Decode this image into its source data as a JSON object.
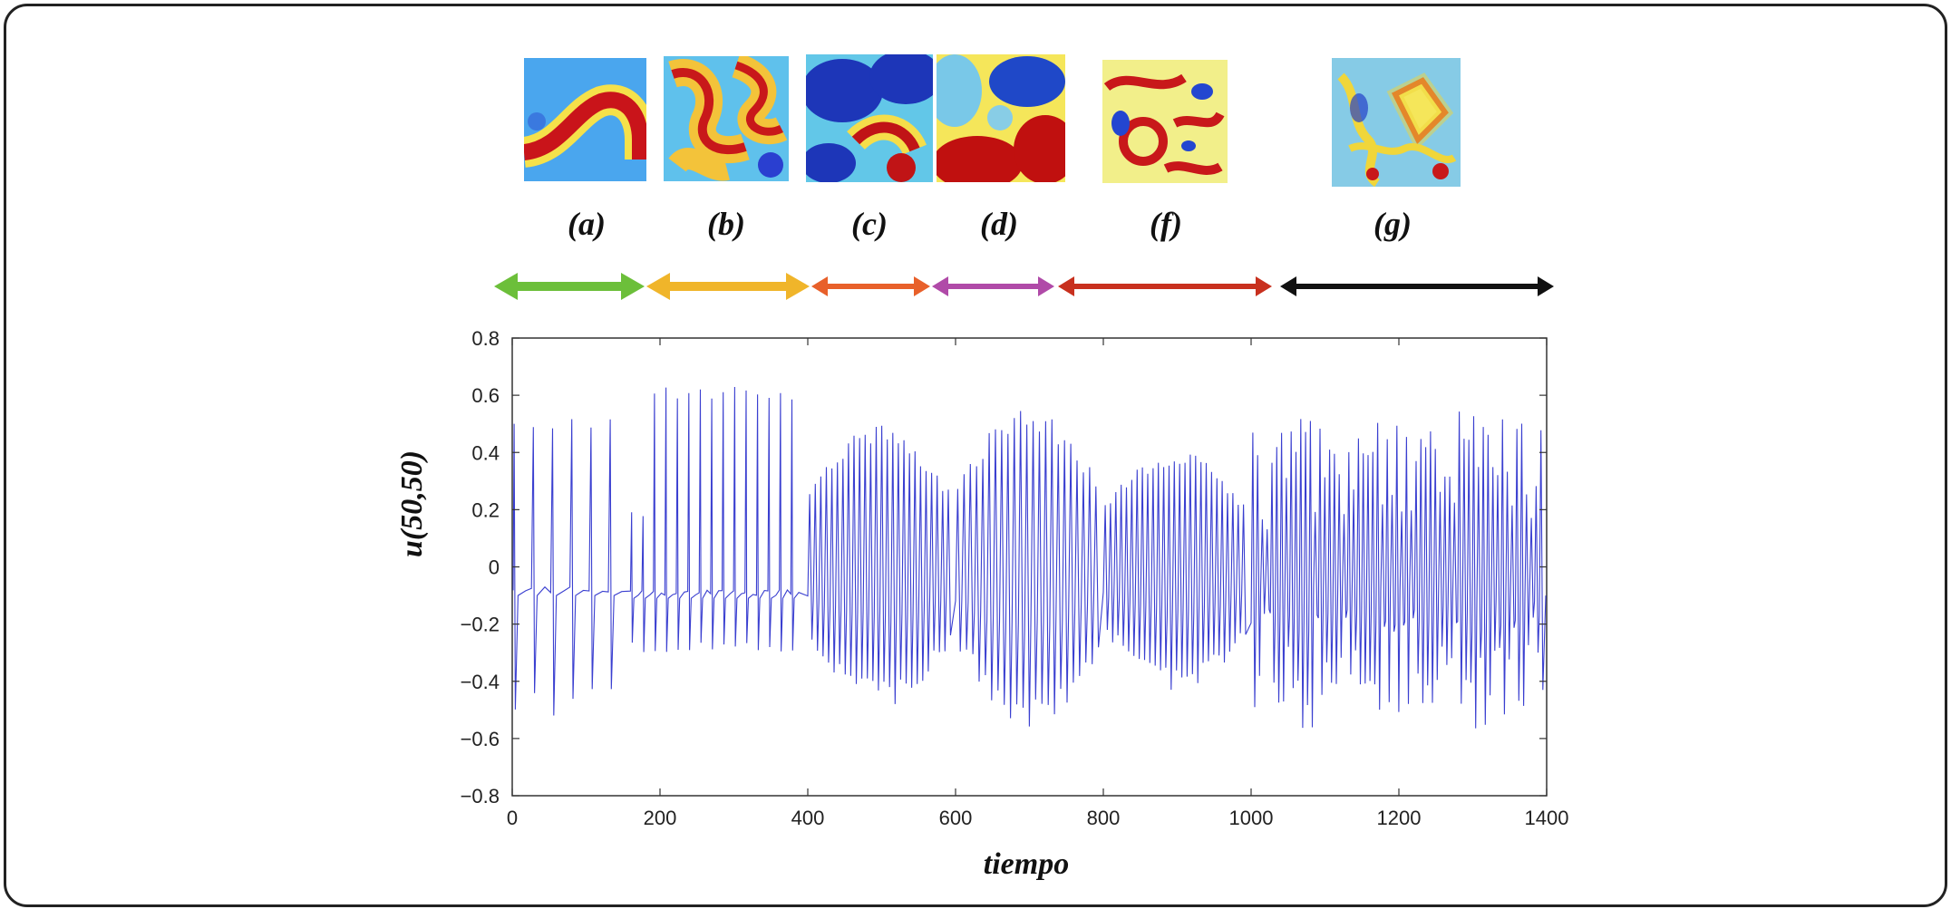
{
  "panels": [
    {
      "label": "(a)",
      "range": [
        0,
        160
      ],
      "arrow_color": "#6cbf3a"
    },
    {
      "label": "(b)",
      "range": [
        160,
        400
      ],
      "arrow_color": "#f0b52a"
    },
    {
      "label": "(c)",
      "range": [
        400,
        560
      ],
      "arrow_color": "#e8602a"
    },
    {
      "label": "(d)",
      "range": [
        560,
        740
      ],
      "arrow_color": "#b04aa8"
    },
    {
      "label": "(f)",
      "range": [
        740,
        1020
      ],
      "arrow_color": "#c8301e"
    },
    {
      "label": "(g)",
      "range": [
        1020,
        1400
      ],
      "arrow_color": "#111111"
    }
  ],
  "chart_data": {
    "type": "line",
    "title": "",
    "xlabel": "tiempo",
    "ylabel": "u(50,50)",
    "xlim": [
      0,
      1400
    ],
    "ylim": [
      -0.8,
      0.8
    ],
    "x_ticks": [
      "0",
      "200",
      "400",
      "600",
      "800",
      "1000",
      "1200",
      "1400"
    ],
    "y_ticks": [
      "0.8",
      "0.6",
      "0.4",
      "0.2",
      "0",
      "−0.2",
      "−0.4",
      "−0.6",
      "−0.8"
    ],
    "grid": false,
    "line_color": "#3a3fd0",
    "series": [
      {
        "segments": [
          {
            "x_start": 0,
            "x_end": 160,
            "baseline": -0.08,
            "period": 26,
            "peak_max": 0.54,
            "trough_min": -0.52,
            "style": "spikes"
          },
          {
            "x_start": 160,
            "x_end": 400,
            "baseline": -0.09,
            "period": 15.5,
            "peak_max": 0.63,
            "trough_min": -0.3,
            "style": "spikes"
          },
          {
            "x_start": 400,
            "x_end": 600,
            "baseline": 0.0,
            "period": 7.5,
            "peak_max": 0.5,
            "trough_min": -0.49,
            "style": "oscillation"
          },
          {
            "x_start": 600,
            "x_end": 800,
            "baseline": 0.0,
            "period": 8.5,
            "peak_max": 0.56,
            "trough_min": -0.56,
            "style": "oscillation"
          },
          {
            "x_start": 800,
            "x_end": 1000,
            "baseline": 0.0,
            "period": 7.2,
            "peak_max": 0.41,
            "trough_min": -0.44,
            "style": "oscillation"
          },
          {
            "x_start": 1000,
            "x_end": 1400,
            "baseline": 0.0,
            "period": 6.5,
            "peak_max": 0.58,
            "trough_min": -0.58,
            "style": "irregular"
          }
        ]
      }
    ]
  }
}
